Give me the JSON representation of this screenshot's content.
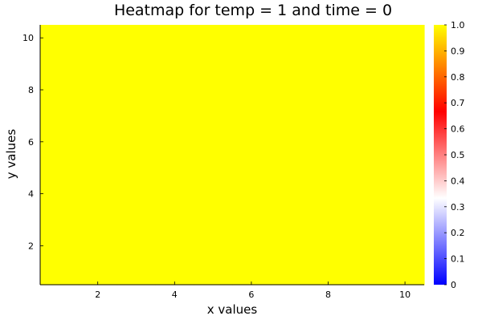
{
  "chart_data": {
    "type": "heatmap",
    "title": "Heatmap for temp = 1 and time = 0",
    "xlabel": "x values",
    "ylabel": "y values",
    "x": [
      1,
      2,
      3,
      4,
      5,
      6,
      7,
      8,
      9,
      10
    ],
    "y": [
      1,
      2,
      3,
      4,
      5,
      6,
      7,
      8,
      9,
      10
    ],
    "z": [
      [
        1,
        1,
        1,
        1,
        1,
        1,
        1,
        1,
        1,
        1
      ],
      [
        1,
        1,
        1,
        1,
        1,
        1,
        1,
        1,
        1,
        1
      ],
      [
        1,
        1,
        1,
        1,
        1,
        1,
        1,
        1,
        1,
        1
      ],
      [
        1,
        1,
        1,
        1,
        1,
        1,
        1,
        1,
        1,
        1
      ],
      [
        1,
        1,
        1,
        1,
        1,
        1,
        1,
        1,
        1,
        1
      ],
      [
        1,
        1,
        1,
        1,
        1,
        1,
        1,
        1,
        1,
        1
      ],
      [
        1,
        1,
        1,
        1,
        1,
        1,
        1,
        1,
        1,
        1
      ],
      [
        1,
        1,
        1,
        1,
        1,
        1,
        1,
        1,
        1,
        1
      ],
      [
        1,
        1,
        1,
        1,
        1,
        1,
        1,
        1,
        1,
        1
      ],
      [
        1,
        1,
        1,
        1,
        1,
        1,
        1,
        1,
        1,
        1
      ]
    ],
    "xlim": [
      0.5,
      10.5
    ],
    "ylim": [
      0.5,
      10.5
    ],
    "xticks": [
      2,
      4,
      6,
      8,
      10
    ],
    "yticks": [
      2,
      4,
      6,
      8,
      10
    ],
    "grid": false,
    "colorbar": {
      "clim": [
        0,
        1
      ],
      "ticks": [
        "0",
        "0.1",
        "0.2",
        "0.3",
        "0.4",
        "0.5",
        "0.6",
        "0.7",
        "0.8",
        "0.9",
        "1.0"
      ],
      "colors": [
        "#0000ff",
        "#ffffff",
        "#ff0000",
        "#ffff00"
      ]
    }
  }
}
